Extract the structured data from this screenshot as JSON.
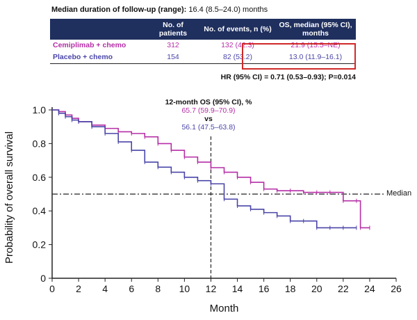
{
  "header": {
    "followup_label": "Median duration of follow-up (range):",
    "followup_value": "16.4 (8.5–24.0) months"
  },
  "table": {
    "col_patients": "No. of patients",
    "col_events": "No. of events, n (%)",
    "col_os": "OS, median (95% CI), months",
    "rows": [
      {
        "arm": "Cemiplimab + chemo",
        "patients": "312",
        "events": "132 (42.3)",
        "os": "21.9 (15.5–NE)"
      },
      {
        "arm": "Placebo + chemo",
        "patients": "154",
        "events": "82 (53.2)",
        "os": "13.0 (11.9–16.1)"
      }
    ],
    "hr_text": "HR (95% CI) = 0.71 (0.53–0.93); P=0.014"
  },
  "annotation": {
    "title": "12-month OS (95% CI), %",
    "cemi_value": "65.7 (59.9–70.9)",
    "vs": "vs",
    "placebo_value": "56.1 (47.5–63.8)",
    "median_label": "Median"
  },
  "colors": {
    "cemiplimab": "#b52ea6",
    "placebo": "#4a45a8",
    "header_bg": "#1f2f5e",
    "highlight": "#d02828"
  },
  "chart_data": {
    "type": "line",
    "title": "",
    "xlabel": "Month",
    "ylabel": "Probability of overall survival",
    "xlim": [
      0,
      26
    ],
    "ylim": [
      0,
      1.0
    ],
    "x_ticks": [
      "0",
      "2",
      "4",
      "6",
      "8",
      "10",
      "12",
      "14",
      "16",
      "18",
      "20",
      "22",
      "24",
      "26"
    ],
    "y_ticks": [
      "0",
      "0.2",
      "0.4",
      "0.6",
      "0.8",
      "1.0"
    ],
    "reference_lines": {
      "median_y": 0.5,
      "month12_x": 12
    },
    "series": [
      {
        "name": "Cemiplimab + chemo",
        "x": [
          0,
          0.5,
          1,
          1.5,
          2,
          3,
          4,
          5,
          6,
          7,
          8,
          9,
          10,
          11,
          12,
          13,
          14,
          15,
          16,
          17,
          18,
          19,
          20,
          21,
          22,
          23,
          23.3,
          24
        ],
        "y": [
          1.0,
          0.99,
          0.97,
          0.95,
          0.93,
          0.91,
          0.89,
          0.87,
          0.86,
          0.84,
          0.8,
          0.76,
          0.72,
          0.69,
          0.657,
          0.63,
          0.6,
          0.57,
          0.53,
          0.52,
          0.52,
          0.51,
          0.51,
          0.51,
          0.46,
          0.46,
          0.3,
          0.3
        ]
      },
      {
        "name": "Placebo + chemo",
        "x": [
          0,
          0.5,
          1,
          1.5,
          2,
          3,
          4,
          5,
          6,
          7,
          8,
          9,
          10,
          11,
          12,
          13,
          14,
          15,
          16,
          17,
          18,
          19,
          20,
          21,
          22,
          23
        ],
        "y": [
          1.0,
          0.98,
          0.96,
          0.94,
          0.93,
          0.9,
          0.86,
          0.81,
          0.76,
          0.69,
          0.66,
          0.63,
          0.6,
          0.58,
          0.561,
          0.47,
          0.43,
          0.41,
          0.39,
          0.37,
          0.34,
          0.34,
          0.3,
          0.3,
          0.3,
          0.3
        ]
      }
    ]
  }
}
